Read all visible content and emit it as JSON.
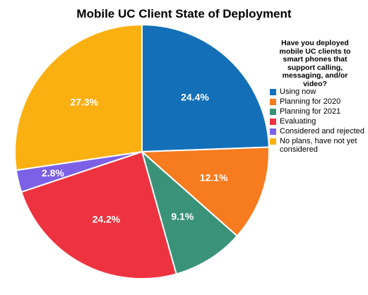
{
  "chart_data": {
    "type": "pie",
    "title": "Mobile UC Client State of Deployment",
    "legend_title": "Have you deployed mobile UC clients to smart phones that support calling, messaging, and/or video?",
    "legend_position": "right",
    "slices": [
      {
        "label": "Using now",
        "value": 24.4,
        "value_label": "24.4%",
        "color": "#1370b8"
      },
      {
        "label": "Planning for 2020",
        "value": 12.1,
        "value_label": "12.1%",
        "color": "#f77b1f"
      },
      {
        "label": "Planning for 2021",
        "value": 9.1,
        "value_label": "9.1%",
        "color": "#3a9379"
      },
      {
        "label": "Evaluating",
        "value": 24.2,
        "value_label": "24.2%",
        "color": "#ee3340"
      },
      {
        "label": "Considered and rejected",
        "value": 2.8,
        "value_label": "2.8%",
        "color": "#7c61e6"
      },
      {
        "label": "No plans, have not yet considered",
        "value": 27.3,
        "value_label": "27.3%",
        "color": "#fbb012"
      }
    ]
  }
}
